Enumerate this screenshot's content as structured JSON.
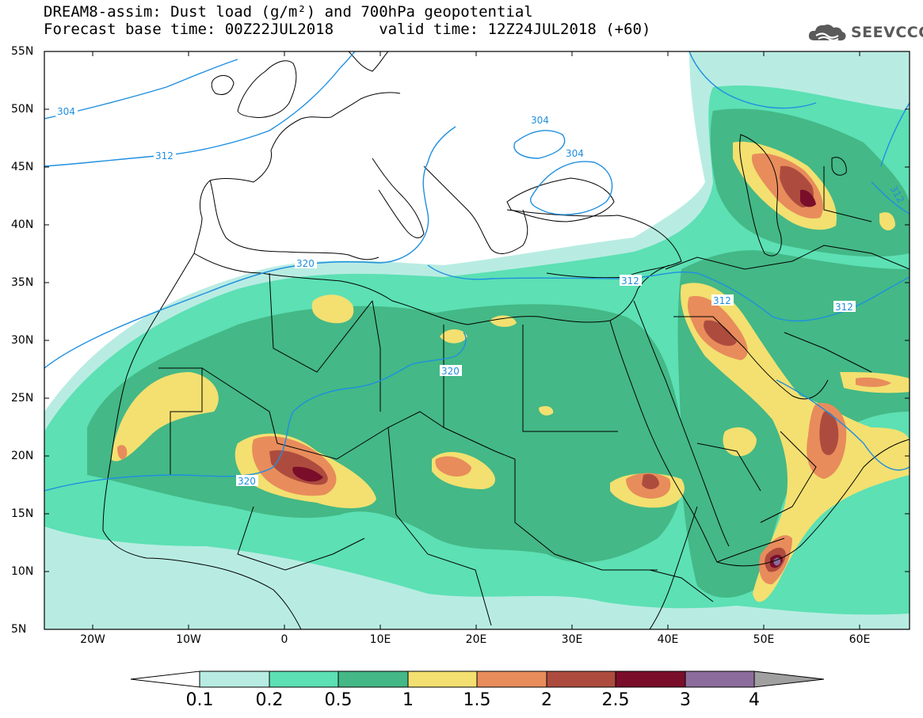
{
  "header": {
    "title_line1": "DREAM8-assim: Dust load (g/m²) and 700hPa geopotential",
    "title_line2": "Forecast base time: 00Z22JUL2018     valid time: 12Z24JUL2018 (+60)"
  },
  "logo": {
    "text": "SEEVCCC",
    "icon": "cloud-icon"
  },
  "map": {
    "lat_labels": [
      "55N",
      "50N",
      "45N",
      "40N",
      "35N",
      "30N",
      "25N",
      "20N",
      "15N",
      "10N",
      "5N"
    ],
    "lon_labels": [
      "20W",
      "10W",
      "0",
      "10E",
      "20E",
      "30E",
      "40E",
      "50E",
      "60E"
    ],
    "contour_labels": {
      "c304a": "304",
      "c304b": "304",
      "c304c": "304",
      "c312a": "312",
      "c312b": "312",
      "c312c": "312",
      "c312d": "312",
      "c312e": "312",
      "c320a": "320",
      "c320b": "320",
      "c320c": "320"
    }
  },
  "colorbar": {
    "labels": [
      "0.1",
      "0.2",
      "0.5",
      "1",
      "1.5",
      "2",
      "2.5",
      "3",
      "4"
    ],
    "colors": [
      "#ffffff",
      "#b8ece2",
      "#5ce0b4",
      "#44b886",
      "#f3e070",
      "#e88c5c",
      "#ad4c3e",
      "#7a0e2a",
      "#8c6c9c",
      "#a0a0a0"
    ]
  },
  "colors": {
    "land_boundary": "#000000",
    "contour": "#1f8fe0",
    "dust_0_1": "#b8ece2",
    "dust_0_2": "#5ce0b4",
    "dust_0_5": "#44b886",
    "dust_1": "#f3e070",
    "dust_1_5": "#e88c5c",
    "dust_2": "#ad4c3e",
    "dust_2_5": "#7a0e2a",
    "dust_3": "#8c6c9c"
  }
}
